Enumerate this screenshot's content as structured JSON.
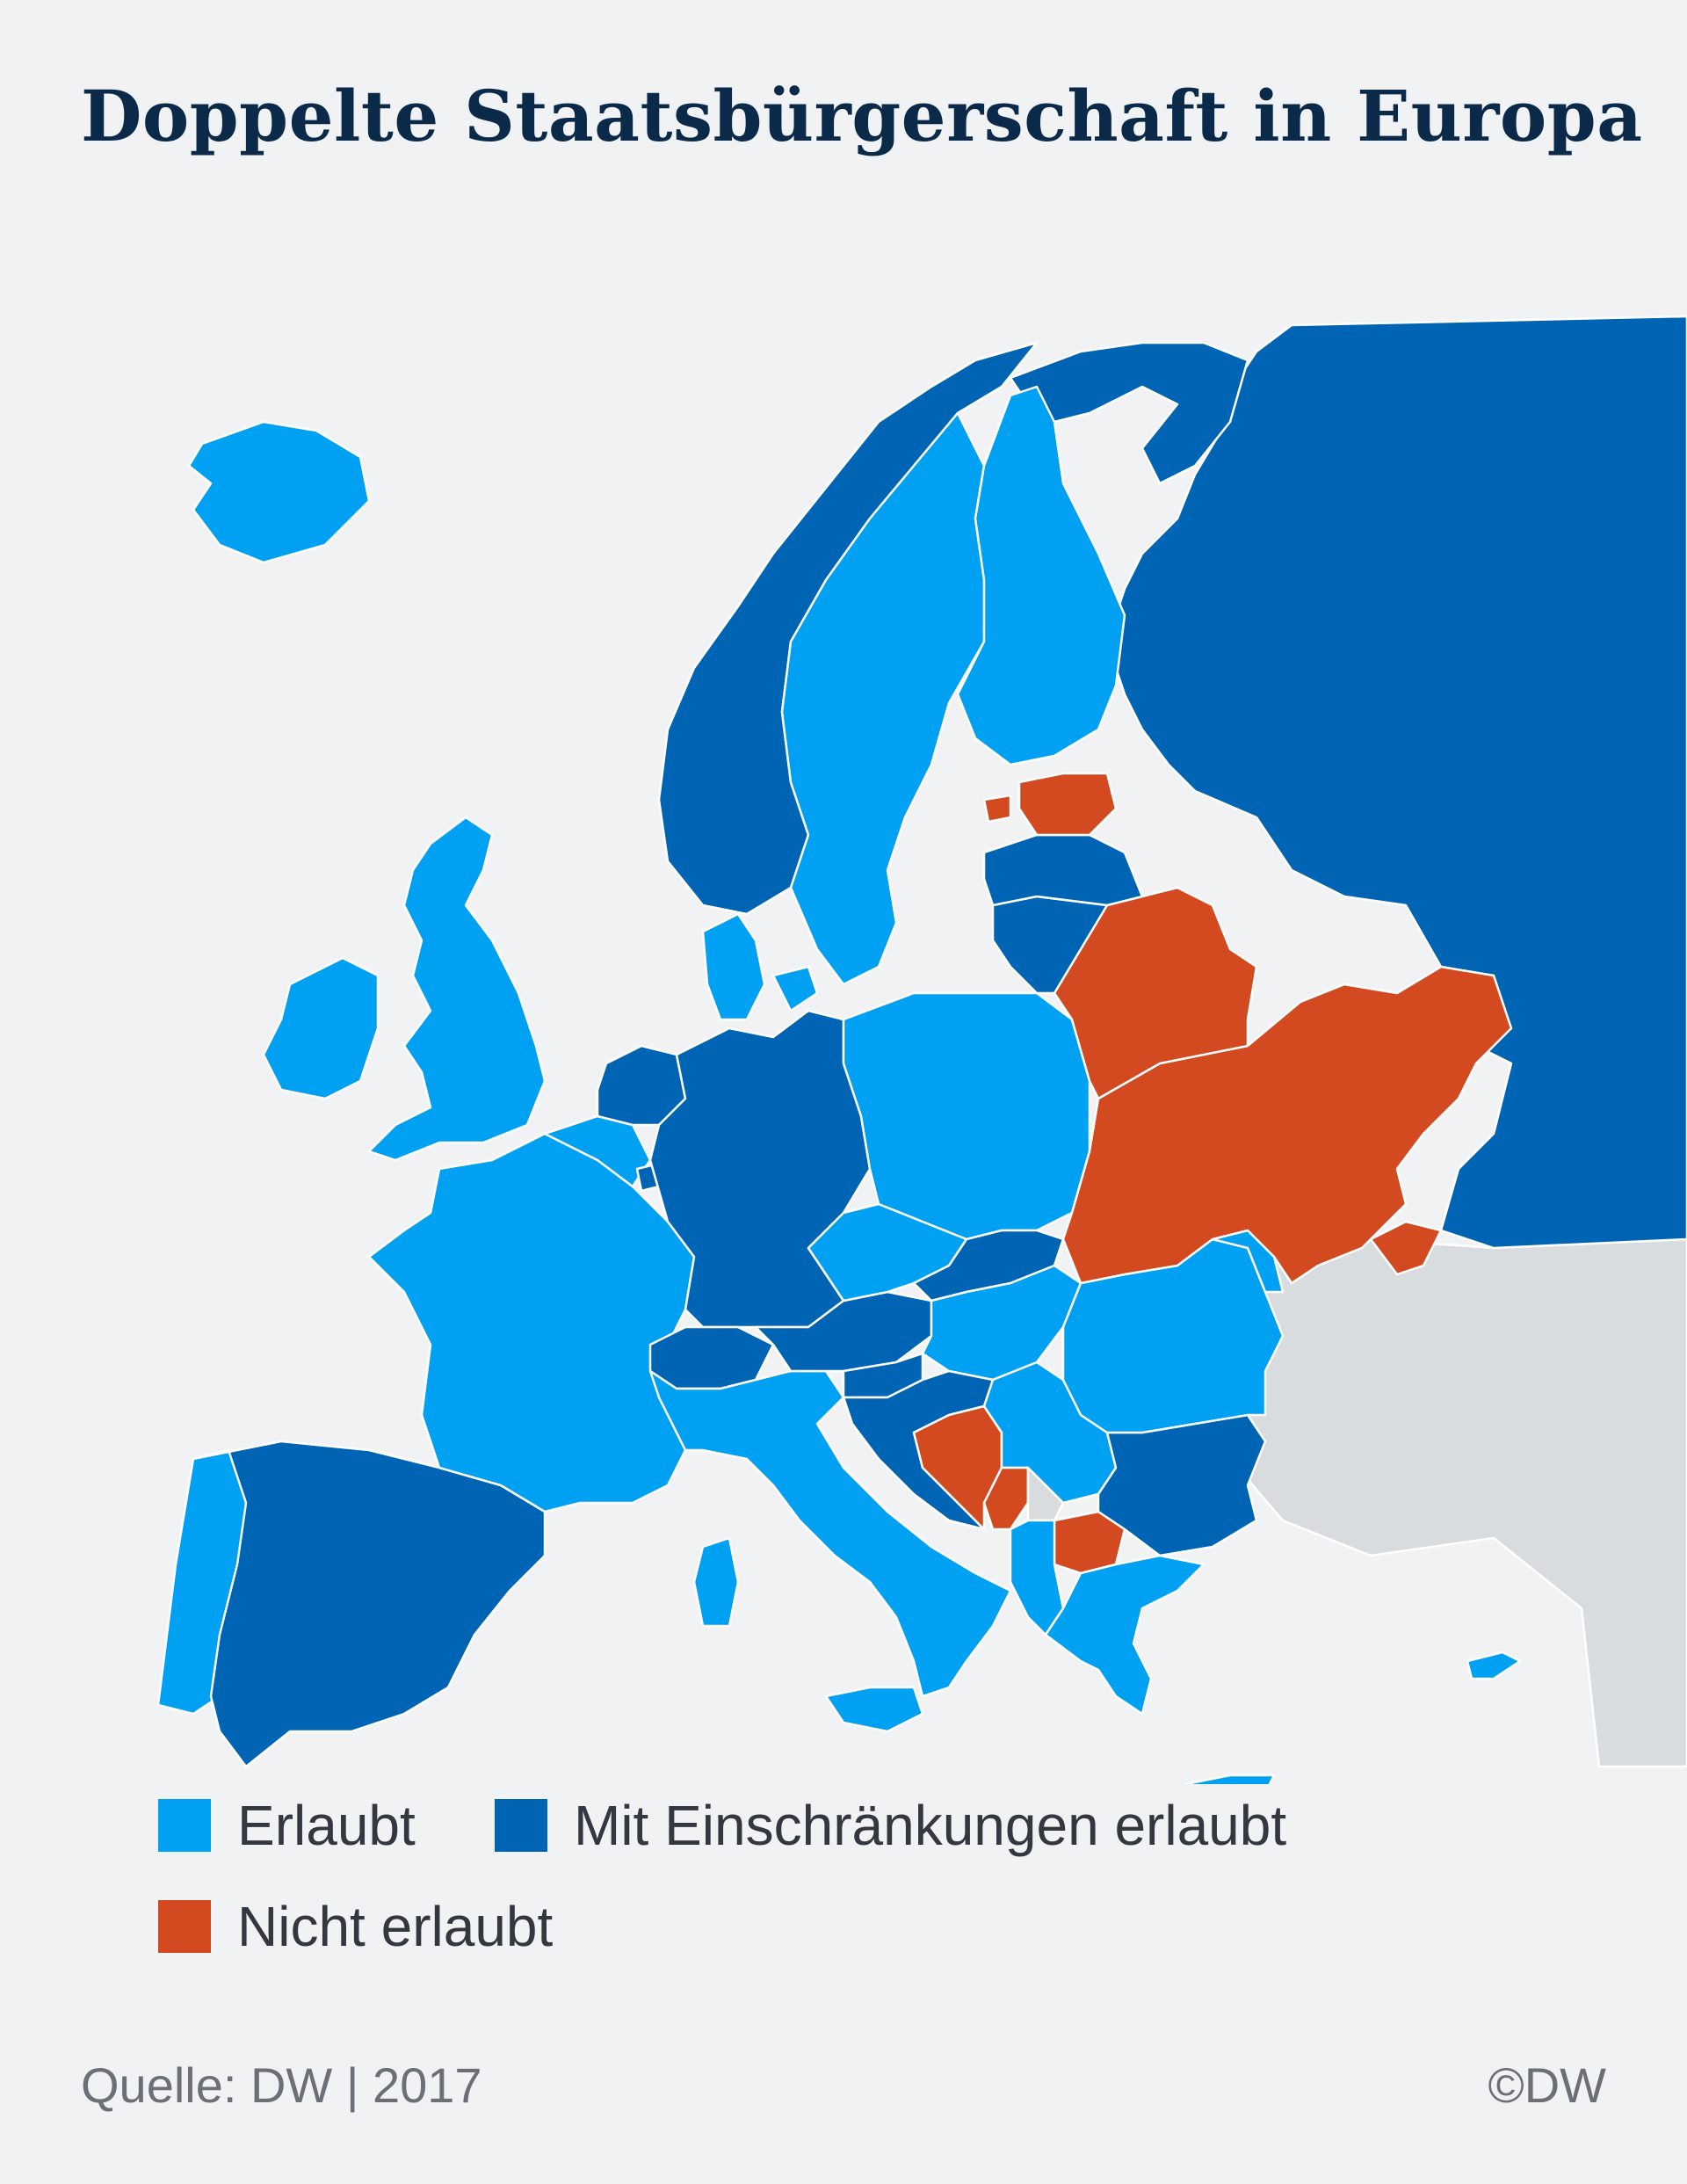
{
  "title": "Doppelte Staatsbürgerschaft in Europa",
  "colors": {
    "background": "#f1f2f4",
    "erlaubt": "#00a1f3",
    "eingeschraenkt": "#0064b5",
    "nicht_erlaubt": "#d44a20",
    "not_covered": "#d9dcdf",
    "title": "#0b2a4a"
  },
  "legend": [
    {
      "key": "erlaubt",
      "label": "Erlaubt",
      "color": "#00a1f3"
    },
    {
      "key": "eingeschraenkt",
      "label": "Mit Einschränkungen erlaubt",
      "color": "#0064b5"
    },
    {
      "key": "nicht_erlaubt",
      "label": "Nicht erlaubt",
      "color": "#d44a20"
    }
  ],
  "source": "Quelle: DW | 2017",
  "credit": "©DW"
}
